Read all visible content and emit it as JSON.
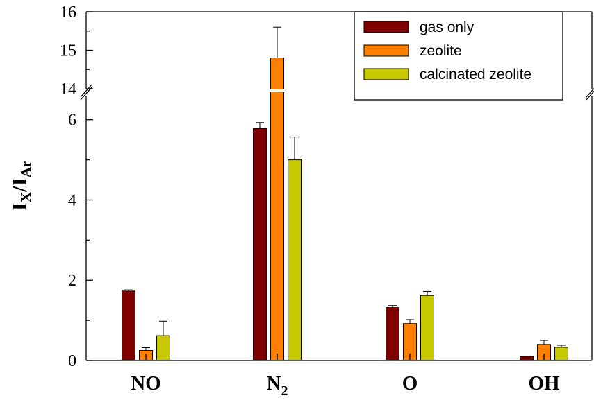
{
  "chart_data": {
    "type": "bar",
    "title": "",
    "ylabel": {
      "main": "I",
      "sub_x": "X",
      "slash": "/",
      "main2": "I",
      "sub_ar": "Ar"
    },
    "xlabel": "",
    "categories": [
      {
        "main": "NO",
        "sub": ""
      },
      {
        "main": "N",
        "sub": "2"
      },
      {
        "main": "O",
        "sub": ""
      },
      {
        "main": "OH",
        "sub": ""
      }
    ],
    "series": [
      {
        "name": "gas only",
        "color": "#800000",
        "values": [
          1.73,
          5.78,
          1.32,
          0.1
        ],
        "errors": [
          0.03,
          0.15,
          0.05,
          0.01
        ]
      },
      {
        "name": "zeolite",
        "color": "#ff8000",
        "values": [
          0.25,
          14.8,
          0.92,
          0.4
        ],
        "errors": [
          0.07,
          0.8,
          0.1,
          0.1
        ]
      },
      {
        "name": "calcinated zeolite",
        "color": "#c8c800",
        "values": [
          0.62,
          5.0,
          1.62,
          0.33
        ],
        "errors": [
          0.36,
          0.57,
          0.1,
          0.05
        ]
      }
    ],
    "y_axis": {
      "broken": true,
      "lower_range": [
        0,
        6.6
      ],
      "upper_range": [
        14,
        16
      ],
      "lower_ticks": [
        "0",
        "2",
        "4",
        "6"
      ],
      "upper_ticks": [
        "14",
        "15",
        "16"
      ]
    },
    "grid": false,
    "legend_position": "top-right"
  }
}
